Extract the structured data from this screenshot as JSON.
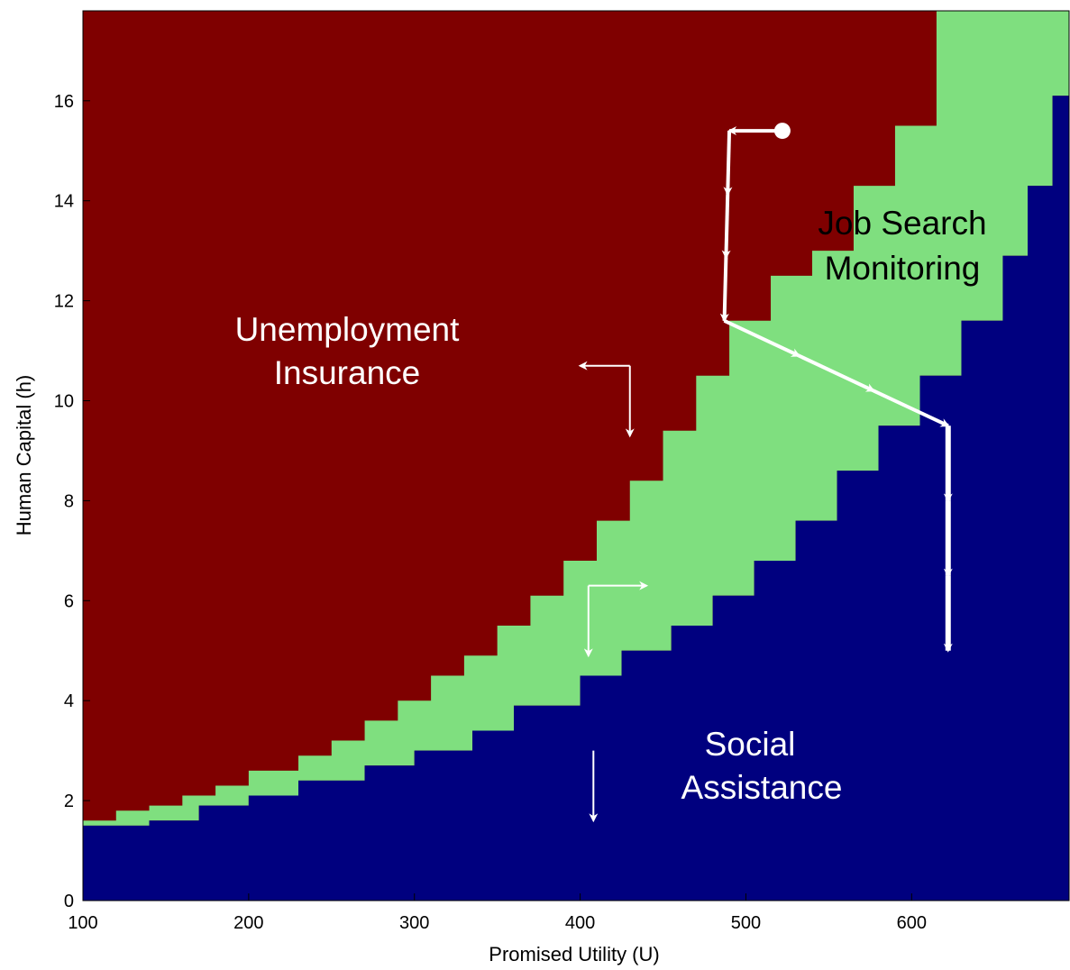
{
  "chart_data": {
    "type": "heatmap",
    "title": "",
    "xlabel": "Promised Utility (U)",
    "ylabel": "Human Capital (h)",
    "xlim": [
      100,
      695
    ],
    "ylim": [
      0,
      17.8
    ],
    "xticks": [
      100,
      200,
      300,
      400,
      500,
      600
    ],
    "yticks": [
      0,
      2,
      4,
      6,
      8,
      10,
      12,
      14,
      16
    ],
    "grid": false,
    "legend": "none",
    "colors": {
      "unemployment_insurance": "#7f0000",
      "job_search_monitoring": "#7fdf7f",
      "social_assistance": "#00007f",
      "arrows": "#ffffff",
      "label_dark": "#000000",
      "label_light": "#ffffff"
    },
    "regions": [
      {
        "name": "Unemployment Insurance",
        "position": "upper-left",
        "label_color": "#ffffff"
      },
      {
        "name": "Job Search Monitoring",
        "position": "upper-right",
        "label_color": "#000000"
      },
      {
        "name": "Social Assistance",
        "position": "lower-right",
        "label_color": "#ffffff"
      }
    ],
    "region_labels": {
      "unemployment_insurance": [
        "Unemployment",
        "Insurance"
      ],
      "job_search_monitoring": [
        "Job Search",
        "Monitoring"
      ],
      "social_assistance": [
        "Social",
        "Assistance"
      ]
    },
    "boundaries": {
      "description": "step boundaries as [U, h] vertices",
      "ui_jsm_upper": [
        [
          100,
          1.6
        ],
        [
          120,
          1.6
        ],
        [
          120,
          1.8
        ],
        [
          140,
          1.8
        ],
        [
          140,
          1.9
        ],
        [
          160,
          1.9
        ],
        [
          160,
          2.1
        ],
        [
          180,
          2.1
        ],
        [
          180,
          2.3
        ],
        [
          200,
          2.3
        ],
        [
          200,
          2.6
        ],
        [
          230,
          2.6
        ],
        [
          230,
          2.9
        ],
        [
          250,
          2.9
        ],
        [
          250,
          3.2
        ],
        [
          270,
          3.2
        ],
        [
          270,
          3.6
        ],
        [
          290,
          3.6
        ],
        [
          290,
          4.0
        ],
        [
          310,
          4.0
        ],
        [
          310,
          4.5
        ],
        [
          330,
          4.5
        ],
        [
          330,
          4.9
        ],
        [
          350,
          4.9
        ],
        [
          350,
          5.5
        ],
        [
          370,
          5.5
        ],
        [
          370,
          6.1
        ],
        [
          390,
          6.1
        ],
        [
          390,
          6.8
        ],
        [
          410,
          6.8
        ],
        [
          410,
          7.6
        ],
        [
          430,
          7.6
        ],
        [
          430,
          8.4
        ],
        [
          450,
          8.4
        ],
        [
          450,
          9.4
        ],
        [
          470,
          9.4
        ],
        [
          470,
          10.5
        ],
        [
          490,
          10.5
        ],
        [
          490,
          11.6
        ],
        [
          515,
          11.6
        ],
        [
          515,
          12.5
        ],
        [
          540,
          12.5
        ],
        [
          540,
          13.0
        ],
        [
          565,
          13.0
        ],
        [
          565,
          14.3
        ],
        [
          590,
          14.3
        ],
        [
          590,
          15.5
        ],
        [
          615,
          15.5
        ],
        [
          615,
          17.8
        ]
      ],
      "jsm_sa_lower": [
        [
          100,
          1.5
        ],
        [
          140,
          1.5
        ],
        [
          140,
          1.6
        ],
        [
          170,
          1.6
        ],
        [
          170,
          1.9
        ],
        [
          200,
          1.9
        ],
        [
          200,
          2.1
        ],
        [
          230,
          2.1
        ],
        [
          230,
          2.4
        ],
        [
          270,
          2.4
        ],
        [
          270,
          2.7
        ],
        [
          300,
          2.7
        ],
        [
          300,
          3.0
        ],
        [
          335,
          3.0
        ],
        [
          335,
          3.4
        ],
        [
          360,
          3.4
        ],
        [
          360,
          3.9
        ],
        [
          400,
          3.9
        ],
        [
          400,
          4.5
        ],
        [
          425,
          4.5
        ],
        [
          425,
          5.0
        ],
        [
          455,
          5.0
        ],
        [
          455,
          5.5
        ],
        [
          480,
          5.5
        ],
        [
          480,
          6.1
        ],
        [
          505,
          6.1
        ],
        [
          505,
          6.8
        ],
        [
          530,
          6.8
        ],
        [
          530,
          7.6
        ],
        [
          555,
          7.6
        ],
        [
          555,
          8.6
        ],
        [
          580,
          8.6
        ],
        [
          580,
          9.5
        ],
        [
          605,
          9.5
        ],
        [
          605,
          10.5
        ],
        [
          630,
          10.5
        ],
        [
          630,
          11.6
        ],
        [
          655,
          11.6
        ],
        [
          655,
          12.9
        ],
        [
          670,
          12.9
        ],
        [
          670,
          14.3
        ],
        [
          685,
          14.3
        ],
        [
          685,
          16.1
        ],
        [
          695,
          16.1
        ],
        [
          695,
          17.8
        ]
      ],
      "jsm_top_right": [
        [
          615,
          17.8
        ],
        [
          695,
          17.8
        ]
      ]
    },
    "annotations": {
      "trajectory_path": [
        [
          522,
          15.4
        ],
        [
          490,
          15.4
        ],
        [
          487,
          11.6
        ],
        [
          622,
          9.5
        ],
        [
          622,
          5.0
        ]
      ],
      "trajectory_start_point": [
        522,
        15.4
      ],
      "direction_arrows_ui": [
        [
          430,
          10.7
        ],
        [
          400,
          10.7
        ],
        [
          430,
          10.7
        ],
        [
          430,
          9.3
        ]
      ],
      "direction_arrows_jsm": [
        [
          405,
          6.3
        ],
        [
          440,
          6.3
        ],
        [
          405,
          6.3
        ],
        [
          405,
          4.9
        ]
      ],
      "direction_arrow_sa": [
        [
          408,
          3.0
        ],
        [
          408,
          1.6
        ]
      ]
    }
  }
}
